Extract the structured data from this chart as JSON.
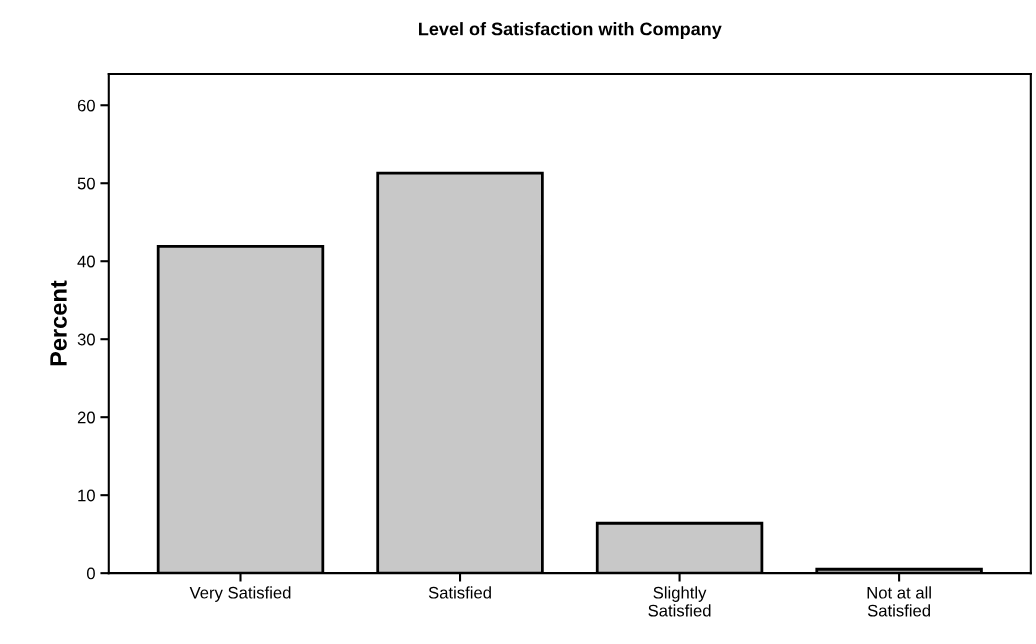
{
  "chart_data": {
    "type": "bar",
    "title": "Level of Satisfaction with Company",
    "ylabel": "Percent",
    "categories": [
      "Very Satisfied",
      "Satisfied",
      "Slightly\nSatisfied",
      "Not at all\nSatisfied"
    ],
    "values": [
      41.9,
      51.3,
      6.4,
      0.5
    ],
    "color": "#c8c8c8",
    "ylim": [
      0,
      64
    ],
    "yticks": [
      0,
      10,
      20,
      30,
      40,
      50,
      60
    ],
    "grid": false,
    "legend": false
  }
}
